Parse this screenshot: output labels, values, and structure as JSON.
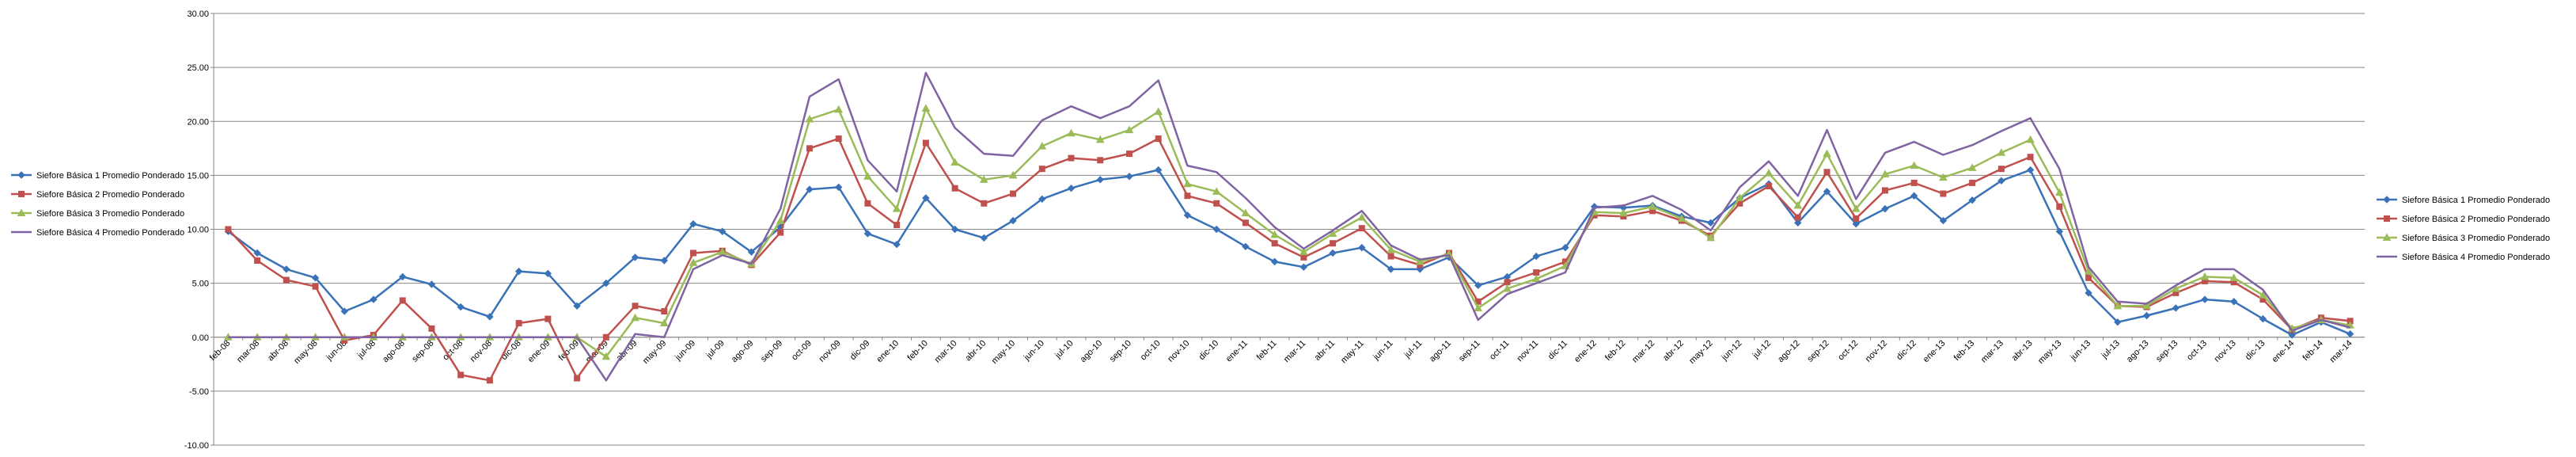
{
  "chart_data": {
    "type": "line",
    "title": "",
    "xlabel": "",
    "ylabel": "",
    "ylim": [
      -10,
      30
    ],
    "yticks": [
      "30.00",
      "25.00",
      "20.00",
      "15.00",
      "10.00",
      "5.00",
      "0.00",
      "-5.00",
      "-10.00"
    ],
    "grid": "horizontal",
    "legend_placement": "left and right",
    "categories": [
      "feb-08",
      "mar-08",
      "abr-08",
      "may-08",
      "jun-08",
      "jul-08",
      "ago-08",
      "sep-08",
      "oct-08",
      "nov-08",
      "dic-08",
      "ene-09",
      "feb-09",
      "mar-09",
      "abr-09",
      "may-09",
      "jun-09",
      "jul-09",
      "ago-09",
      "sep-09",
      "oct-09",
      "nov-09",
      "dic-09",
      "ene-10",
      "feb-10",
      "mar-10",
      "abr-10",
      "may-10",
      "jun-10",
      "jul-10",
      "ago-10",
      "sep-10",
      "oct-10",
      "nov-10",
      "dic-10",
      "ene-11",
      "feb-11",
      "mar-11",
      "abr-11",
      "may-11",
      "jun-11",
      "jul-11",
      "ago-11",
      "sep-11",
      "oct-11",
      "nov-11",
      "dic-11",
      "ene-12",
      "feb-12",
      "mar-12",
      "abr-12",
      "may-12",
      "jun-12",
      "jul-12",
      "ago-12",
      "sep-12",
      "oct-12",
      "nov-12",
      "dic-12",
      "ene-13",
      "feb-13",
      "mar-13",
      "abr-13",
      "may-13",
      "jun-13",
      "jul-13",
      "ago-13",
      "sep-13",
      "oct-13",
      "nov-13",
      "dic-13",
      "ene-14",
      "feb-14",
      "mar-14"
    ],
    "series": [
      {
        "name": "Siefore Básica 1 Promedio Ponderado",
        "color": "#3a72b8",
        "marker": "diamond",
        "values": [
          9.8,
          7.8,
          6.3,
          5.5,
          2.4,
          3.5,
          5.6,
          4.9,
          2.8,
          1.9,
          6.1,
          5.9,
          2.9,
          5.0,
          7.4,
          7.1,
          10.5,
          9.8,
          7.9,
          10.2,
          13.7,
          13.9,
          9.6,
          8.6,
          12.9,
          10.0,
          9.2,
          10.8,
          12.8,
          13.8,
          14.6,
          14.9,
          15.5,
          11.3,
          10.0,
          8.4,
          7.0,
          6.5,
          7.8,
          8.3,
          6.3,
          6.3,
          7.4,
          4.8,
          5.6,
          7.5,
          8.3,
          12.1,
          12.0,
          12.2,
          11.2,
          10.6,
          12.9,
          14.2,
          10.6,
          13.5,
          10.5,
          11.9,
          13.1,
          10.8,
          12.7,
          14.5,
          15.5,
          9.8,
          4.1,
          1.4,
          2.0,
          2.7,
          3.5,
          3.3,
          1.7,
          0.2,
          1.4,
          0.3
        ]
      },
      {
        "name": "Siefore Básica 2 Promedio Ponderado",
        "color": "#c0504d",
        "marker": "square",
        "values": [
          10.0,
          7.1,
          5.3,
          4.7,
          -0.3,
          0.2,
          3.4,
          0.8,
          -3.5,
          -4.0,
          1.3,
          1.7,
          -3.8,
          0.0,
          2.9,
          2.4,
          7.8,
          8.0,
          6.7,
          9.7,
          17.5,
          18.4,
          12.4,
          10.4,
          18.0,
          13.8,
          12.4,
          13.3,
          15.6,
          16.6,
          16.4,
          17.0,
          18.4,
          13.1,
          12.4,
          10.6,
          8.7,
          7.4,
          8.7,
          10.1,
          7.5,
          6.7,
          7.8,
          3.3,
          5.1,
          6.0,
          7.0,
          11.3,
          11.2,
          11.7,
          10.8,
          9.4,
          12.4,
          14.0,
          11.1,
          15.3,
          11.0,
          13.6,
          14.3,
          13.3,
          14.3,
          15.6,
          16.7,
          12.1,
          5.5,
          2.9,
          2.8,
          4.1,
          5.2,
          5.1,
          3.5,
          0.7,
          1.8,
          1.5
        ]
      },
      {
        "name": "Siefore Básica 3 Promedio Ponderado",
        "color": "#9bbb59",
        "marker": "triangle",
        "values": [
          0.0,
          0.0,
          0.0,
          0.0,
          0.0,
          0.0,
          0.0,
          0.0,
          0.0,
          0.0,
          0.0,
          0.0,
          0.0,
          -1.8,
          1.8,
          1.3,
          6.9,
          7.9,
          6.8,
          10.8,
          20.2,
          21.1,
          14.9,
          11.9,
          21.2,
          16.2,
          14.6,
          15.0,
          17.7,
          18.9,
          18.3,
          19.2,
          20.9,
          14.2,
          13.5,
          11.5,
          9.5,
          7.9,
          9.6,
          11.1,
          8.1,
          7.0,
          7.7,
          2.7,
          4.5,
          5.4,
          6.6,
          11.6,
          11.5,
          12.1,
          11.0,
          9.2,
          12.9,
          15.2,
          12.2,
          17.0,
          11.9,
          15.1,
          15.9,
          14.8,
          15.7,
          17.1,
          18.3,
          13.4,
          6.1,
          2.9,
          2.9,
          4.5,
          5.6,
          5.5,
          3.9,
          0.8,
          1.6,
          1.1
        ]
      },
      {
        "name": "Siefore Básica 4 Promedio Ponderado",
        "color": "#8064a2",
        "marker": "none",
        "values": [
          0.0,
          0.0,
          0.0,
          0.0,
          0.0,
          0.0,
          0.0,
          0.0,
          0.0,
          0.0,
          0.0,
          0.0,
          0.0,
          -4.0,
          0.3,
          0.0,
          6.3,
          7.6,
          6.8,
          11.9,
          22.3,
          23.9,
          16.4,
          13.5,
          24.5,
          19.4,
          17.0,
          16.8,
          20.1,
          21.4,
          20.3,
          21.4,
          23.8,
          15.9,
          15.3,
          12.9,
          10.2,
          8.2,
          9.9,
          11.7,
          8.5,
          7.2,
          7.6,
          1.6,
          4.0,
          5.0,
          6.0,
          12.0,
          12.2,
          13.1,
          11.8,
          9.9,
          13.9,
          16.3,
          13.1,
          19.2,
          12.8,
          17.1,
          18.1,
          16.9,
          17.8,
          19.1,
          20.3,
          15.6,
          6.5,
          3.3,
          3.1,
          4.8,
          6.3,
          6.3,
          4.4,
          0.6,
          1.6,
          0.9
        ]
      }
    ]
  }
}
